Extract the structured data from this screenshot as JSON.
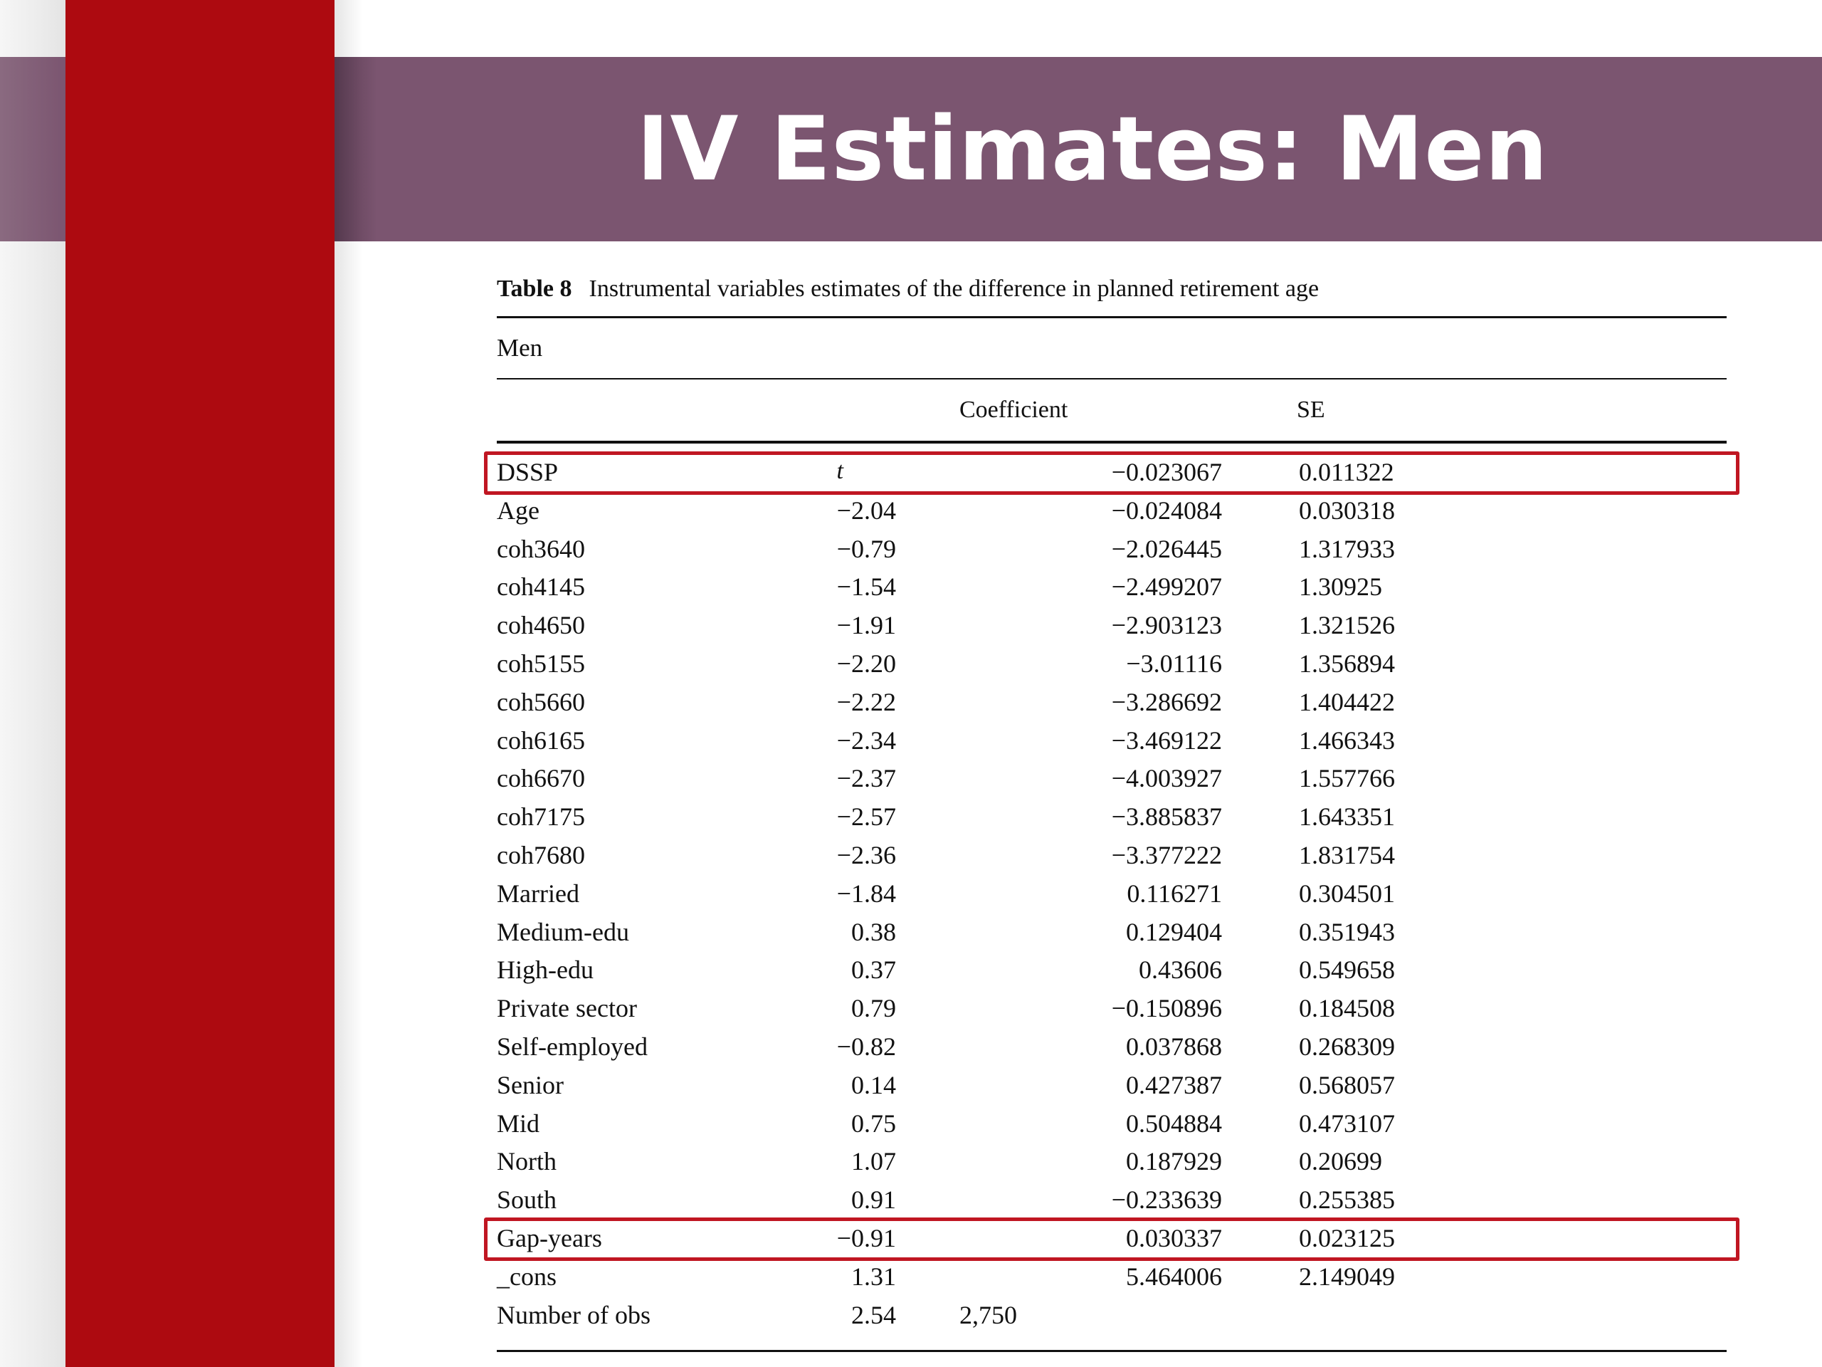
{
  "slide": {
    "title": "IV Estimates: Men",
    "colors": {
      "accent_red": "#ad0a10",
      "title_band": "#7b5570",
      "highlight_border": "#c01622"
    }
  },
  "table": {
    "caption_label": "Table 8",
    "caption_text": "Instrumental variables estimates of the difference in planned retirement age",
    "group_label": "Men",
    "columns": [
      "",
      "Coefficient",
      "SE",
      "t"
    ],
    "rows": [
      {
        "variable": "DSSP",
        "coef": "−0.023067",
        "se": "0.011322",
        "t": "−2.04",
        "highlighted": true
      },
      {
        "variable": "Age",
        "coef": "−0.024084",
        "se": "0.030318",
        "t": "−0.79"
      },
      {
        "variable": "coh3640",
        "coef": "−2.026445",
        "se": "1.317933",
        "t": "−1.54"
      },
      {
        "variable": "coh4145",
        "coef": "−2.499207",
        "se": "1.30925",
        "t": "−1.91"
      },
      {
        "variable": "coh4650",
        "coef": "−2.903123",
        "se": "1.321526",
        "t": "−2.20"
      },
      {
        "variable": "coh5155",
        "coef": "−3.01116",
        "se": "1.356894",
        "t": "−2.22"
      },
      {
        "variable": "coh5660",
        "coef": "−3.286692",
        "se": "1.404422",
        "t": "−2.34"
      },
      {
        "variable": "coh6165",
        "coef": "−3.469122",
        "se": "1.466343",
        "t": "−2.37"
      },
      {
        "variable": "coh6670",
        "coef": "−4.003927",
        "se": "1.557766",
        "t": "−2.57"
      },
      {
        "variable": "coh7175",
        "coef": "−3.885837",
        "se": "1.643351",
        "t": "−2.36"
      },
      {
        "variable": "coh7680",
        "coef": "−3.377222",
        "se": "1.831754",
        "t": "−1.84"
      },
      {
        "variable": "Married",
        "coef": "0.116271",
        "se": "0.304501",
        "t": "0.38"
      },
      {
        "variable": "Medium-edu",
        "coef": "0.129404",
        "se": "0.351943",
        "t": "0.37"
      },
      {
        "variable": "High-edu",
        "coef": "0.43606",
        "se": "0.549658",
        "t": "0.79"
      },
      {
        "variable": "Private sector",
        "coef": "−0.150896",
        "se": "0.184508",
        "t": "−0.82"
      },
      {
        "variable": "Self-employed",
        "coef": "0.037868",
        "se": "0.268309",
        "t": "0.14"
      },
      {
        "variable": "Senior",
        "coef": "0.427387",
        "se": "0.568057",
        "t": "0.75"
      },
      {
        "variable": "Mid",
        "coef": "0.504884",
        "se": "0.473107",
        "t": "1.07"
      },
      {
        "variable": "North",
        "coef": "0.187929",
        "se": "0.20699",
        "t": "0.91"
      },
      {
        "variable": "South",
        "coef": "−0.233639",
        "se": "0.255385",
        "t": "−0.91"
      },
      {
        "variable": "Gap-years",
        "coef": "0.030337",
        "se": "0.023125",
        "t": "1.31",
        "highlighted": true
      },
      {
        "variable": "_cons",
        "coef": "5.464006",
        "se": "2.149049",
        "t": "2.54"
      }
    ],
    "obs_row": {
      "variable": "Number of obs",
      "coef": "2,750",
      "se": "",
      "t": ""
    }
  }
}
